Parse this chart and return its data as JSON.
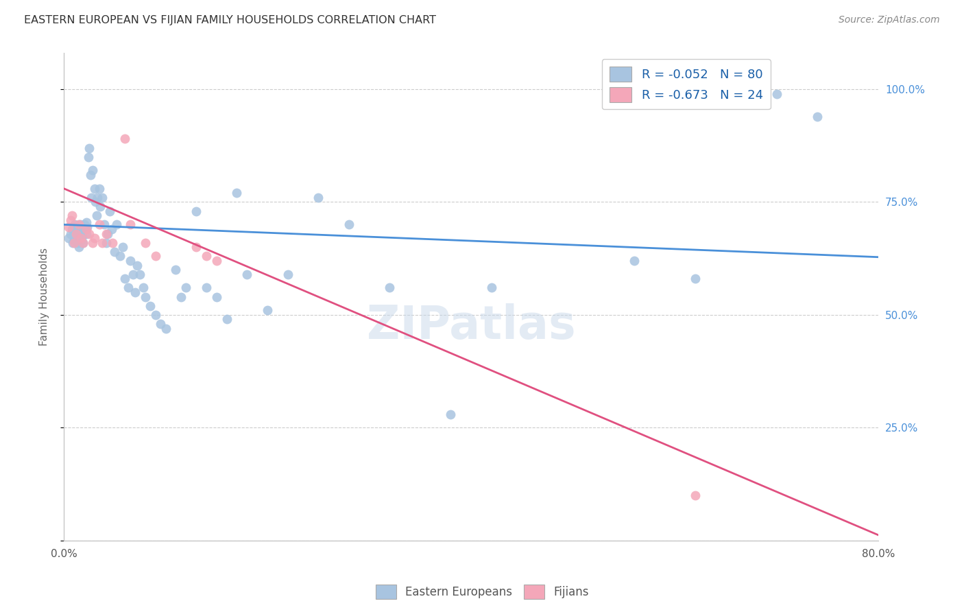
{
  "title": "EASTERN EUROPEAN VS FIJIAN FAMILY HOUSEHOLDS CORRELATION CHART",
  "source": "Source: ZipAtlas.com",
  "ylabel": "Family Households",
  "xmin": 0.0,
  "xmax": 0.8,
  "ymin": 0.0,
  "ymax": 1.08,
  "blue_color": "#a8c4e0",
  "pink_color": "#f4a7b9",
  "blue_line_color": "#4a90d9",
  "pink_line_color": "#e05080",
  "legend_blue_label": "R = -0.052   N = 80",
  "legend_pink_label": "R = -0.673   N = 24",
  "legend_blue_face": "#a8c4e0",
  "legend_pink_face": "#f4a7b9",
  "watermark": "ZIPatlas",
  "bottom_legend_blue": "Eastern Europeans",
  "bottom_legend_pink": "Fijians",
  "blue_intercept": 0.7,
  "blue_slope": -0.09,
  "pink_intercept": 0.78,
  "pink_slope": -0.96,
  "blue_x": [
    0.005,
    0.007,
    0.008,
    0.009,
    0.01,
    0.01,
    0.01,
    0.011,
    0.012,
    0.012,
    0.013,
    0.013,
    0.014,
    0.015,
    0.015,
    0.016,
    0.016,
    0.017,
    0.018,
    0.018,
    0.019,
    0.02,
    0.021,
    0.022,
    0.022,
    0.023,
    0.024,
    0.025,
    0.026,
    0.027,
    0.028,
    0.03,
    0.031,
    0.032,
    0.033,
    0.035,
    0.036,
    0.038,
    0.04,
    0.042,
    0.043,
    0.045,
    0.047,
    0.05,
    0.052,
    0.055,
    0.058,
    0.06,
    0.063,
    0.065,
    0.068,
    0.07,
    0.072,
    0.075,
    0.078,
    0.08,
    0.085,
    0.09,
    0.095,
    0.1,
    0.11,
    0.115,
    0.12,
    0.13,
    0.14,
    0.15,
    0.16,
    0.17,
    0.18,
    0.2,
    0.22,
    0.25,
    0.28,
    0.32,
    0.38,
    0.42,
    0.56,
    0.62,
    0.7,
    0.74
  ],
  "blue_y": [
    0.67,
    0.68,
    0.69,
    0.66,
    0.665,
    0.68,
    0.695,
    0.7,
    0.67,
    0.675,
    0.68,
    0.69,
    0.66,
    0.65,
    0.695,
    0.68,
    0.7,
    0.665,
    0.675,
    0.685,
    0.66,
    0.7,
    0.69,
    0.68,
    0.705,
    0.695,
    0.85,
    0.87,
    0.81,
    0.76,
    0.82,
    0.78,
    0.75,
    0.72,
    0.76,
    0.78,
    0.74,
    0.76,
    0.7,
    0.66,
    0.68,
    0.73,
    0.69,
    0.64,
    0.7,
    0.63,
    0.65,
    0.58,
    0.56,
    0.62,
    0.59,
    0.55,
    0.61,
    0.59,
    0.56,
    0.54,
    0.52,
    0.5,
    0.48,
    0.47,
    0.6,
    0.54,
    0.56,
    0.73,
    0.56,
    0.54,
    0.49,
    0.77,
    0.59,
    0.51,
    0.59,
    0.76,
    0.7,
    0.56,
    0.28,
    0.56,
    0.62,
    0.58,
    0.99,
    0.94
  ],
  "pink_x": [
    0.005,
    0.007,
    0.008,
    0.01,
    0.012,
    0.015,
    0.017,
    0.019,
    0.022,
    0.025,
    0.028,
    0.03,
    0.035,
    0.038,
    0.042,
    0.048,
    0.06,
    0.065,
    0.08,
    0.09,
    0.13,
    0.14,
    0.15,
    0.62
  ],
  "pink_y": [
    0.695,
    0.71,
    0.72,
    0.66,
    0.68,
    0.7,
    0.67,
    0.66,
    0.69,
    0.68,
    0.66,
    0.67,
    0.7,
    0.66,
    0.68,
    0.66,
    0.89,
    0.7,
    0.66,
    0.63,
    0.65,
    0.63,
    0.62,
    0.1
  ]
}
